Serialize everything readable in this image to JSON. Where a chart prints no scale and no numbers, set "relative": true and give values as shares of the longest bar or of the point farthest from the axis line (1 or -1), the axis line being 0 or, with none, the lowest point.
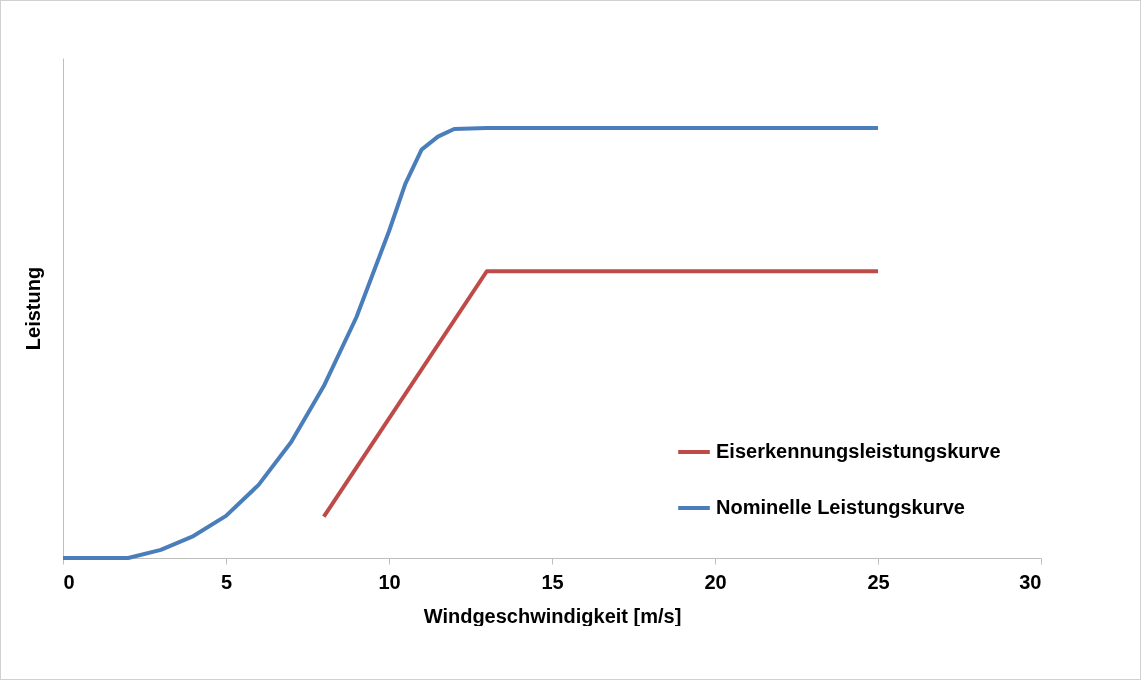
{
  "chart_data": {
    "type": "line",
    "relative": true,
    "xlabel": "Windgeschwindigkeit [m/s]",
    "ylabel": "Leistung",
    "xlim": [
      0,
      30
    ],
    "xticks": [
      0,
      5,
      10,
      15,
      20,
      25,
      30
    ],
    "grid": false,
    "legend": "bottom right",
    "marker": "none",
    "line_style": "solid",
    "series": [
      {
        "name": "Eiserkennungsleistungskurve",
        "color": "#be4b48",
        "x": [
          8,
          13,
          25
        ],
        "values": [
          0.096,
          0.667,
          0.667
        ]
      },
      {
        "name": "Nominelle Leistungskurve",
        "color": "#4a7ebb",
        "x": [
          0,
          2,
          3,
          4,
          5,
          6,
          7,
          8,
          9,
          10,
          10.5,
          11,
          11.5,
          12,
          13,
          25
        ],
        "values": [
          0,
          0,
          0.019,
          0.051,
          0.098,
          0.17,
          0.27,
          0.4,
          0.56,
          0.76,
          0.87,
          0.95,
          0.98,
          0.998,
          1,
          1
        ]
      }
    ]
  }
}
